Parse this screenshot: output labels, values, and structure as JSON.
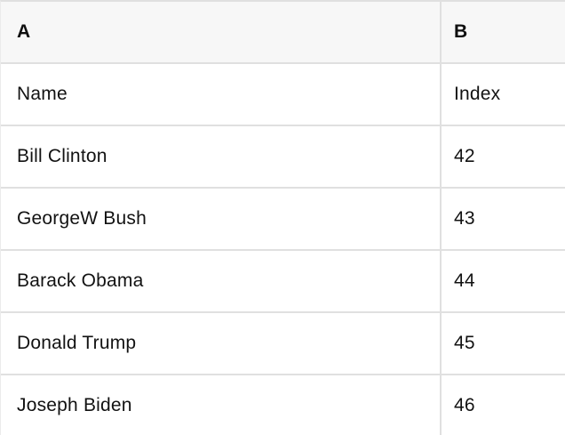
{
  "table": {
    "kind": "spreadsheet-preview",
    "columns": [
      {
        "label": "A"
      },
      {
        "label": "B"
      }
    ],
    "field_row": {
      "name": "Name",
      "index": "Index"
    },
    "rows": [
      {
        "name": "Bill Clinton",
        "index": "42"
      },
      {
        "name": "GeorgeW Bush",
        "index": "43"
      },
      {
        "name": "Barack Obama",
        "index": "44"
      },
      {
        "name": "Donald Trump",
        "index": "45"
      },
      {
        "name": "Joseph Biden",
        "index": "46"
      }
    ],
    "colors": {
      "header_bg": "#f7f7f7",
      "cell_bg": "#ffffff",
      "border": "#e0e0e0",
      "text": "#121212"
    }
  }
}
